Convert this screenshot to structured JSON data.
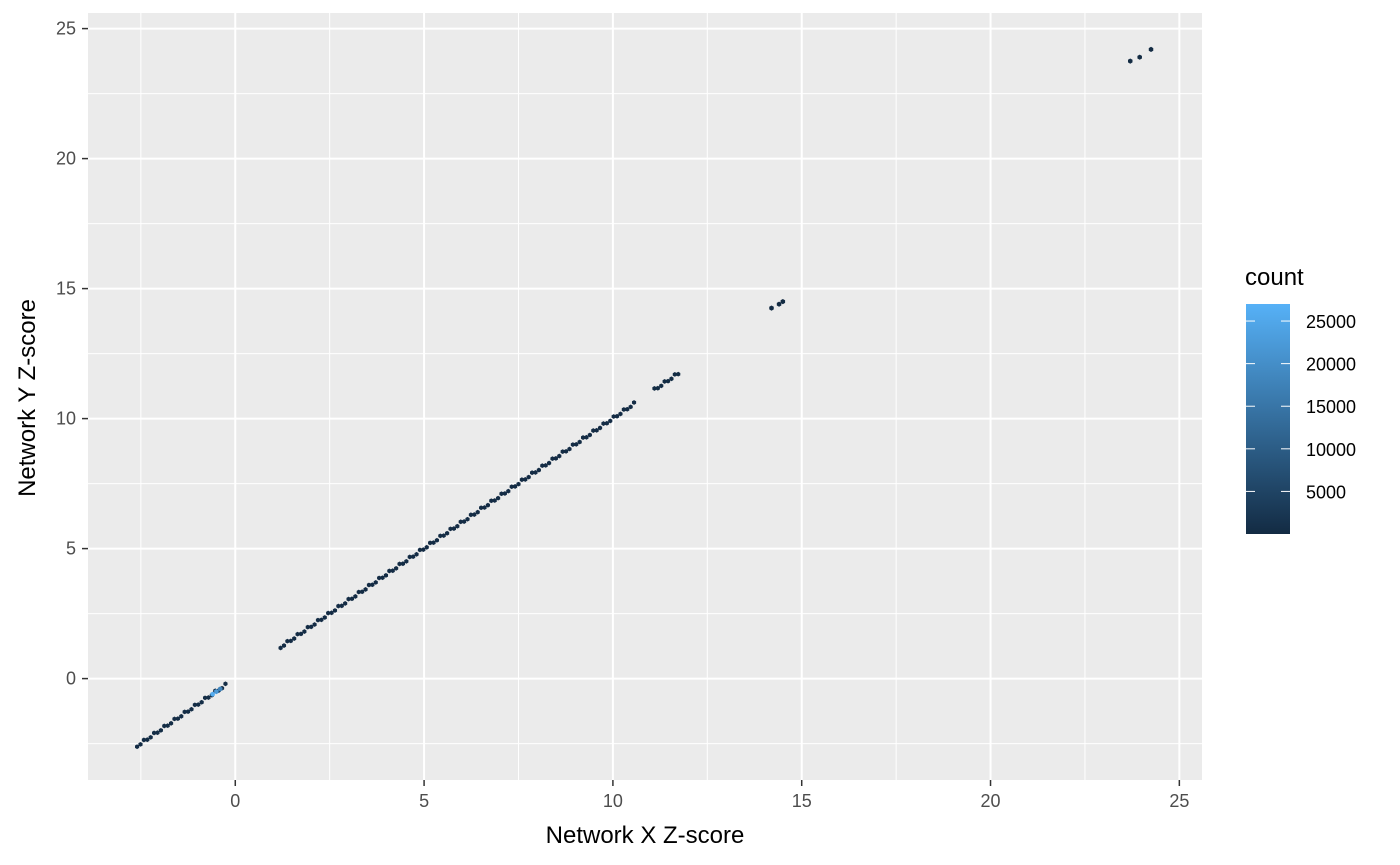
{
  "chart_data": {
    "type": "hexbin",
    "title": "",
    "xlabel": "Network X Z-score",
    "ylabel": "Network Y Z-score",
    "xlim": [
      -3.9,
      25.6
    ],
    "ylim": [
      -3.9,
      25.6
    ],
    "x_ticks": [
      0,
      5,
      10,
      15,
      20,
      25
    ],
    "y_ticks": [
      0,
      5,
      10,
      15,
      20,
      25
    ],
    "x_tick_labels": [
      "0",
      "5",
      "10",
      "15",
      "20",
      "25"
    ],
    "y_tick_labels": [
      "0",
      "5",
      "10",
      "15",
      "20",
      "25"
    ],
    "grid": true,
    "panel_background": "#EBEBEB",
    "grid_color": "#FFFFFF",
    "legend": {
      "title": "count",
      "placement": "right",
      "min": 1,
      "max": 27000,
      "breaks": [
        5000,
        10000,
        15000,
        20000,
        25000
      ],
      "break_labels": [
        "5000",
        "10000",
        "15000",
        "20000",
        "25000"
      ],
      "color_low": "#132B43",
      "color_high": "#56B1F7"
    },
    "segments": [
      {
        "x_start": -2.6,
        "x_end": -0.2,
        "count": 400
      },
      {
        "x_start": 1.2,
        "x_end": 10.6,
        "count": 300
      },
      {
        "x_start": 11.1,
        "x_end": 11.8,
        "count": 150
      }
    ],
    "points": [
      {
        "x": -0.6,
        "y": -0.6,
        "count": 26000
      },
      {
        "x": -0.5,
        "y": -0.5,
        "count": 22000
      },
      {
        "x": -0.4,
        "y": -0.4,
        "count": 18000
      },
      {
        "x": 14.2,
        "y": 14.25,
        "count": 40
      },
      {
        "x": 14.4,
        "y": 14.4,
        "count": 40
      },
      {
        "x": 14.5,
        "y": 14.5,
        "count": 40
      },
      {
        "x": 23.7,
        "y": 23.75,
        "count": 20
      },
      {
        "x": 23.95,
        "y": 23.9,
        "count": 20
      },
      {
        "x": 24.25,
        "y": 24.2,
        "count": 20
      }
    ]
  }
}
